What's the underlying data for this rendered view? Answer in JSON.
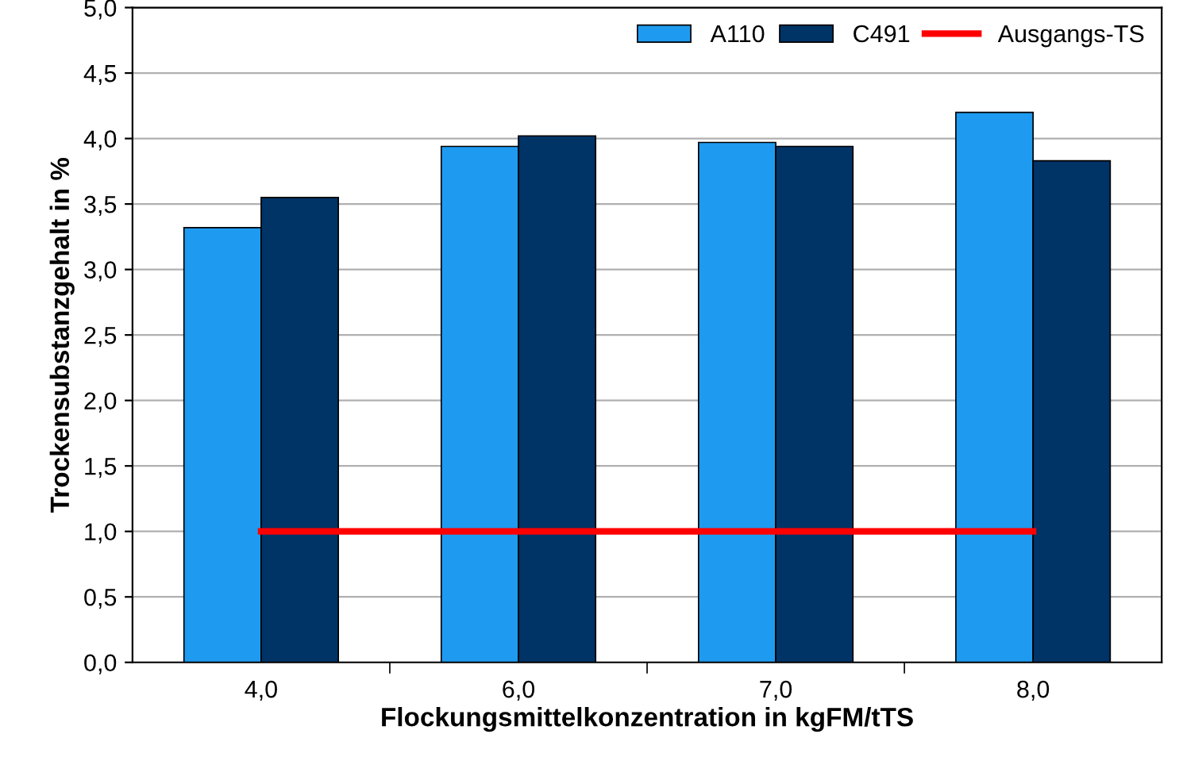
{
  "chart_data": {
    "type": "bar",
    "xlabel": "Flockungsmittelkonzentration in kgFM/tTS",
    "ylabel": "Trockensubstanzgehalt in %",
    "categories": [
      "4,0",
      "6,0",
      "7,0",
      "8,0"
    ],
    "series": [
      {
        "name": "A110",
        "color": "#1e9bf0",
        "values": [
          3.32,
          3.94,
          3.97,
          4.2
        ]
      },
      {
        "name": "C491",
        "color": "#003366",
        "values": [
          3.55,
          4.02,
          3.94,
          3.83
        ]
      },
      {
        "name": "Ausgangs-TS",
        "type": "line",
        "color": "#ff0000",
        "values": [
          1.0,
          1.0,
          1.0,
          1.0
        ]
      }
    ],
    "ylim": [
      0,
      5
    ],
    "yticks": [
      {
        "value": 0,
        "label": "0,0"
      },
      {
        "value": 0.5,
        "label": "0,5"
      },
      {
        "value": 1,
        "label": "1,0"
      },
      {
        "value": 1.5,
        "label": "1,5"
      },
      {
        "value": 2,
        "label": "2,0"
      },
      {
        "value": 2.5,
        "label": "2,5"
      },
      {
        "value": 3,
        "label": "3,0"
      },
      {
        "value": 3.5,
        "label": "3,5"
      },
      {
        "value": 4,
        "label": "4,0"
      },
      {
        "value": 4.5,
        "label": "4,5"
      },
      {
        "value": 5,
        "label": "5,0"
      }
    ],
    "grid": "y",
    "legend": "top right"
  }
}
